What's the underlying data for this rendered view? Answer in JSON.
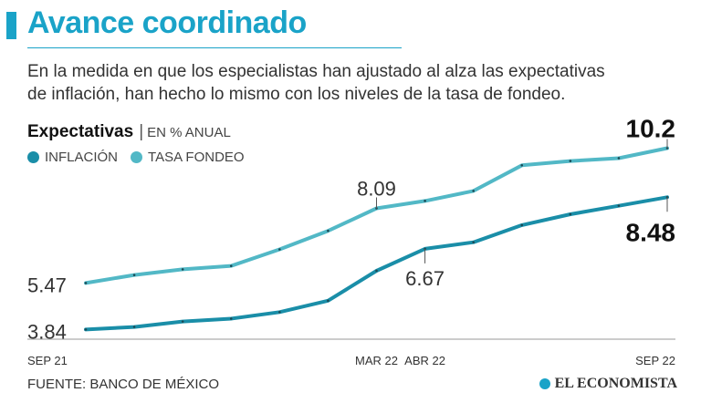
{
  "colors": {
    "accent": "#1aa3c8",
    "inflacion": "#1a8ea8",
    "tasa": "#52b8c6",
    "axis": "#999999",
    "text_dark": "#111111"
  },
  "header": {
    "title": "Avance coordinado",
    "subtitle_line1": "En la medida en que los especialistas han ajustado al alza las expectativas",
    "subtitle_line2": "de inflación, han hecho lo mismo con los niveles de la tasa de fondeo."
  },
  "chart_heading": {
    "label": "Expectativas",
    "separator": "|",
    "unit": "EN % ANUAL"
  },
  "legend": {
    "inflacion": "INFLACIÓN",
    "tasa": "TASA FONDEO"
  },
  "footer": {
    "source": "FUENTE: BANCO DE MÉXICO",
    "brand": "EL ECONOMISTA"
  },
  "chart_data": {
    "type": "line",
    "title": "Expectativas",
    "ylabel": "EN % ANUAL",
    "xlabel": "",
    "x": [
      0,
      1,
      2,
      3,
      4,
      5,
      6,
      7,
      8,
      9,
      10,
      11,
      12
    ],
    "x_ticks": [
      {
        "x": 0,
        "label": "SEP 21"
      },
      {
        "x": 6,
        "label": "MAR 22"
      },
      {
        "x": 7,
        "label": "ABR 22"
      },
      {
        "x": 12,
        "label": "SEP 22"
      }
    ],
    "ylim": [
      3.5,
      10.6
    ],
    "grid": false,
    "legend_position": "top-left",
    "series": [
      {
        "name": "TASA FONDEO",
        "key": "tasa",
        "values": [
          5.47,
          5.75,
          5.95,
          6.07,
          6.65,
          7.3,
          8.09,
          8.35,
          8.7,
          9.6,
          9.75,
          9.85,
          10.2
        ],
        "labels": [
          {
            "index": 0,
            "text": "5.47"
          },
          {
            "index": 6,
            "text": "8.09"
          },
          {
            "index": 12,
            "text": "10.2"
          }
        ]
      },
      {
        "name": "INFLACIÓN",
        "key": "inflacion",
        "values": [
          3.84,
          3.93,
          4.12,
          4.22,
          4.45,
          4.85,
          5.9,
          6.67,
          6.9,
          7.5,
          7.88,
          8.18,
          8.48
        ],
        "labels": [
          {
            "index": 0,
            "text": "3.84"
          },
          {
            "index": 7,
            "text": "6.67"
          },
          {
            "index": 12,
            "text": "8.48"
          }
        ]
      }
    ]
  }
}
